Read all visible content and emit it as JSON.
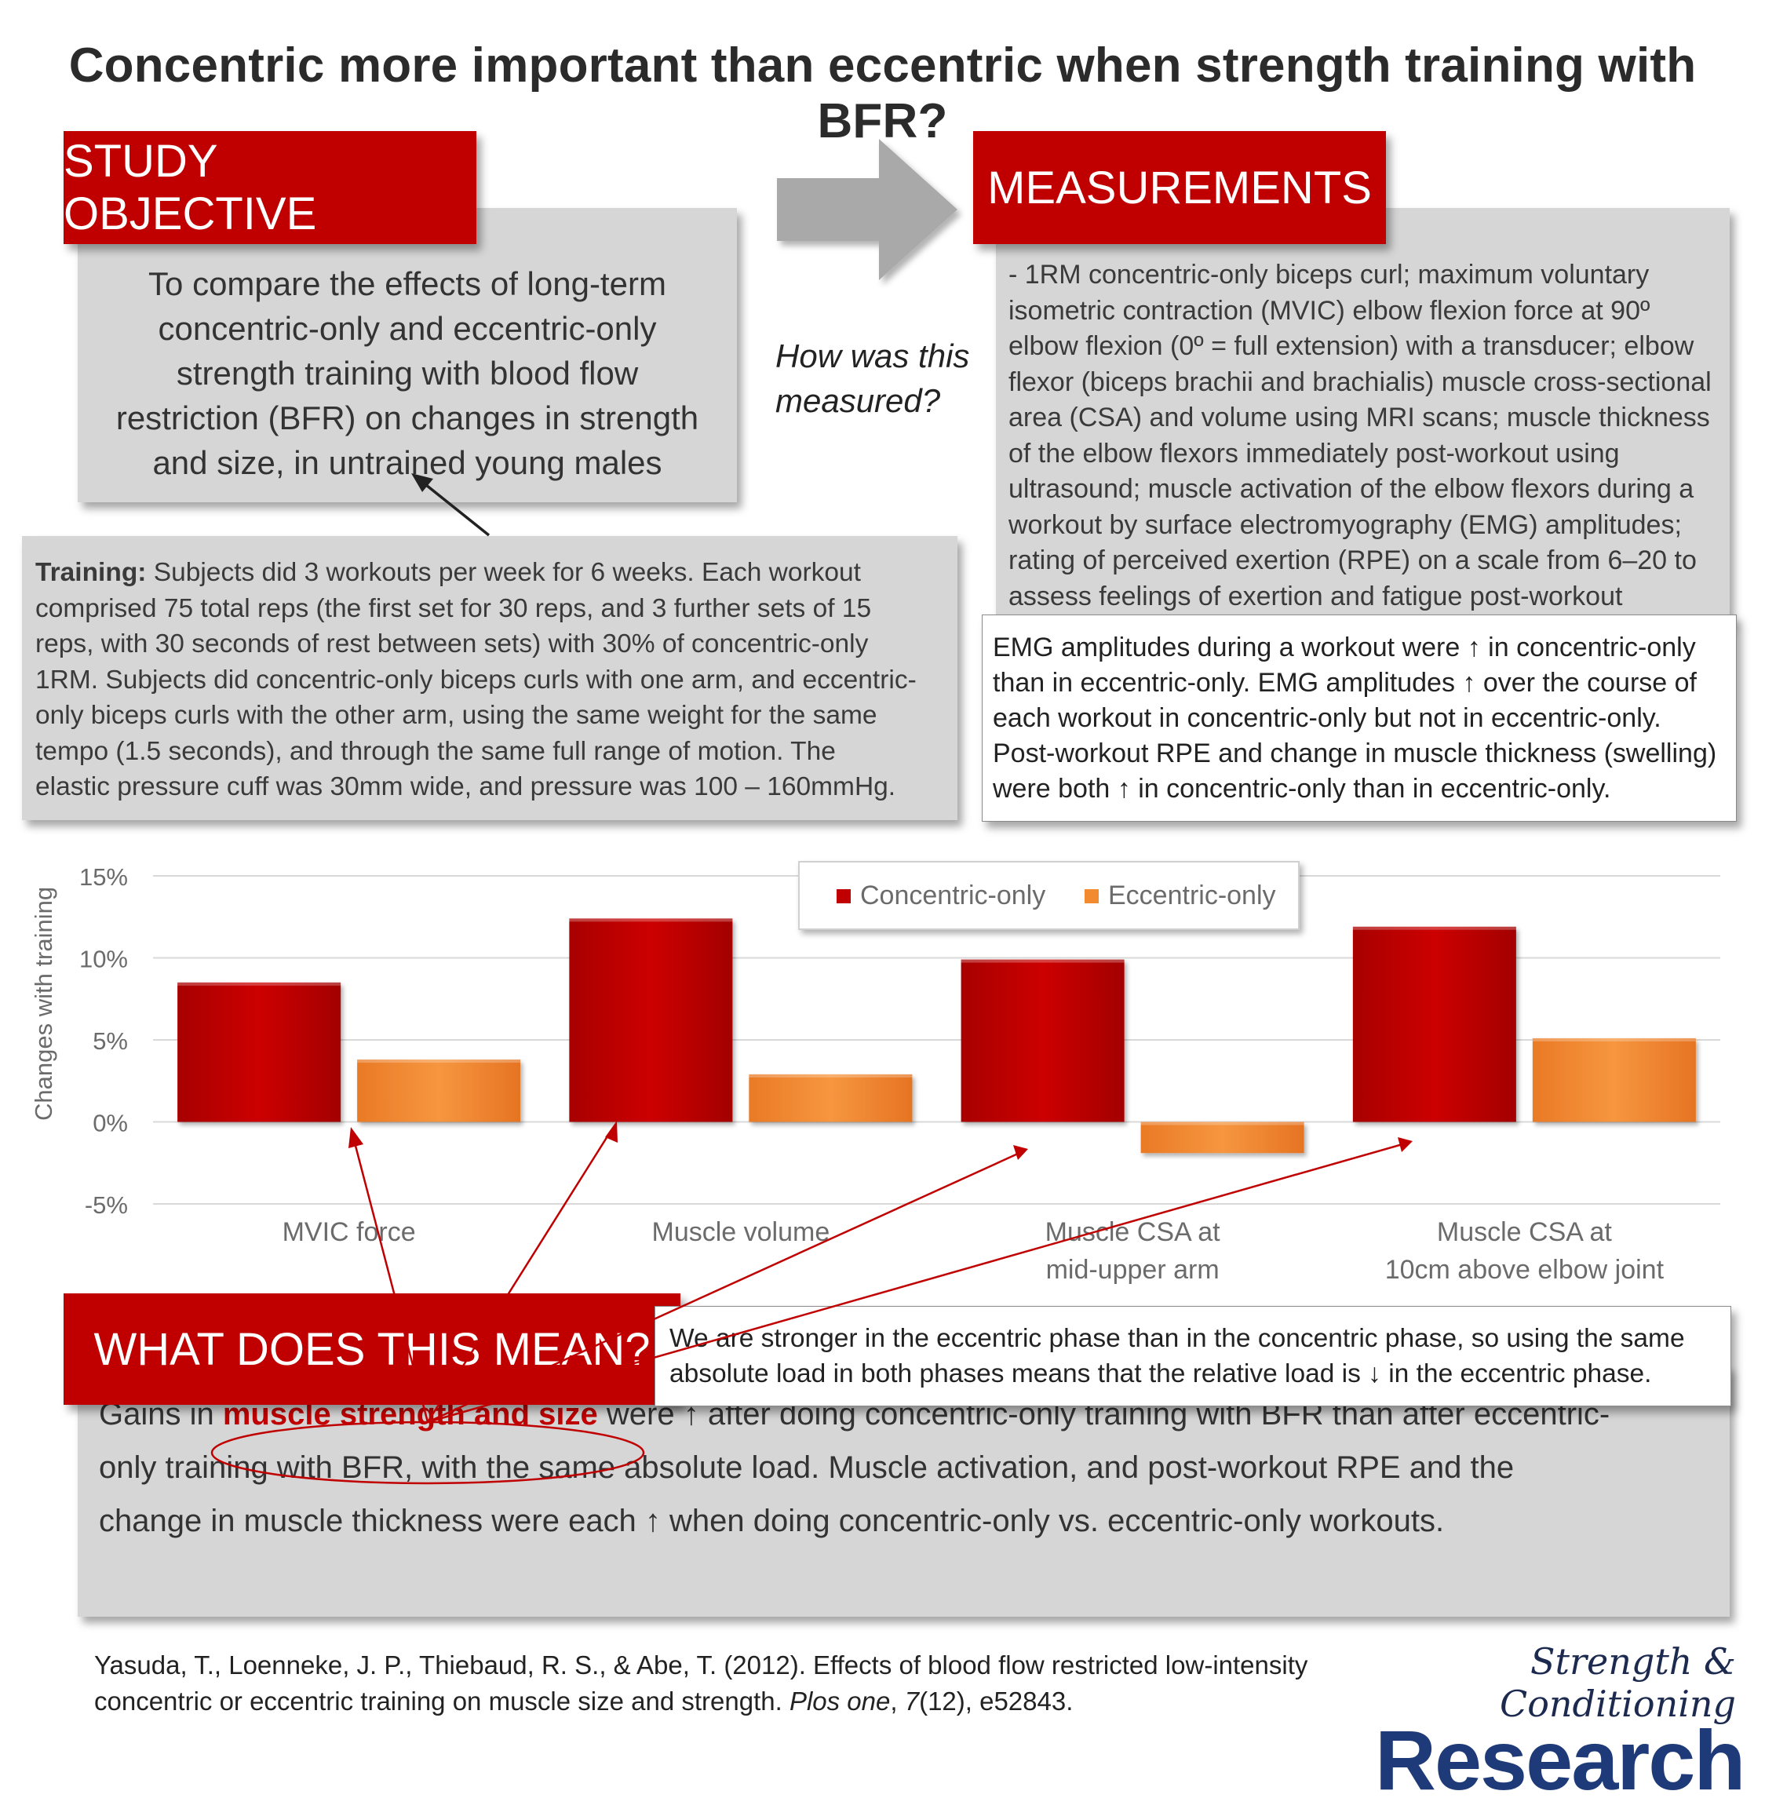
{
  "title": "Concentric more important than eccentric when strength training with BFR?",
  "objective": {
    "label": "STUDY OBJECTIVE",
    "lines": [
      "To compare the effects of long-term",
      "concentric-only and eccentric-only",
      "strength training with blood flow",
      "restriction (BFR) on changes in strength",
      "and size, in untrained young males"
    ]
  },
  "question": [
    "How was this",
    "measured?"
  ],
  "measurements": {
    "label": "MEASUREMENTS",
    "lines": [
      "- 1RM concentric-only biceps curl; maximum voluntary",
      "isometric contraction (MVIC) elbow flexion force at 90º",
      "elbow flexion (0º = full extension) with a transducer; elbow",
      "flexor (biceps brachii and brachialis) muscle cross-sectional",
      "area (CSA) and volume using MRI scans; muscle thickness",
      "of the elbow flexors immediately post-workout using",
      "ultrasound; muscle activation of the elbow flexors during a",
      "workout by surface electromyography (EMG) amplitudes;",
      "rating of perceived exertion (RPE) on a scale from 6–20 to",
      "assess feelings of exertion and fatigue post-workout"
    ]
  },
  "training": {
    "label": "Training:",
    "first_line": " Subjects did 3 workouts per week for 6 weeks. Each workout",
    "lines": [
      "comprised 75 total reps (the first set for 30 reps, and 3 further sets of 15",
      "reps, with 30 seconds of rest between sets) with 30% of concentric-only",
      "1RM. Subjects did concentric-only biceps curls with one arm, and eccentric-",
      "only biceps curls with the other arm, using the same weight for the same",
      "tempo (1.5 seconds), and through the same full range of motion. The",
      "elastic pressure cuff was 30mm wide, and pressure was 100 – 160mmHg."
    ]
  },
  "emg": {
    "lines": [
      "EMG amplitudes during a workout were ↑ in concentric-only",
      "than in eccentric-only. EMG amplitudes ↑ over the course of",
      "each workout in concentric-only but not in eccentric-only.",
      "Post-workout RPE and change in muscle thickness (swelling)",
      "were both ↑ in concentric-only than in eccentric-only."
    ]
  },
  "meaning": {
    "label": "WHAT DOES THIS MEAN?",
    "note_lines": [
      "We are stronger in the eccentric phase than in the concentric phase, so using the same",
      "absolute load in both phases means that the relative load is ↓ in the eccentric phase."
    ],
    "line1_pre": "Gains in ",
    "line1_highlight": "muscle strength and size",
    "line1_post": " were ↑ after doing concentric-only training with BFR than after eccentric-",
    "line2": "only training with BFR, with the same absolute load. Muscle activation, and post-workout RPE and the",
    "line3": "change in muscle thickness were each ↑ when doing concentric-only vs. eccentric-only workouts."
  },
  "citation": {
    "line1": "Yasuda, T., Loenneke, J. P., Thiebaud, R. S., & Abe, T. (2012). Effects of blood flow restricted low-intensity",
    "line2_pre": "concentric or eccentric training on muscle size and strength. ",
    "journal": "Plos one",
    "sep": ", ",
    "volume": "7",
    "issue_pages": "(12), e52843."
  },
  "logo": {
    "top": "Strength & Conditioning",
    "bottom": "Research"
  },
  "chart_data": {
    "type": "bar",
    "categories": [
      [
        "MVIC force"
      ],
      [
        "Muscle volume"
      ],
      [
        "Muscle CSA at",
        "mid-upper arm"
      ],
      [
        "Muscle CSA at",
        "10cm above elbow joint"
      ]
    ],
    "series": [
      {
        "name": "Concentric-only",
        "values": [
          8.5,
          12.4,
          9.9,
          11.9
        ],
        "color": "#c00000"
      },
      {
        "name": "Eccentric-only",
        "values": [
          3.8,
          2.9,
          -1.9,
          5.1
        ],
        "color": "#f28a30"
      }
    ],
    "ylabel": "Changes with training",
    "yticks": [
      "15%",
      "10%",
      "5%",
      "0%",
      "-5%"
    ],
    "ytick_values": [
      15,
      10,
      5,
      0,
      -5
    ],
    "ylim": [
      -5,
      15
    ],
    "grid": true,
    "legend": "top-center"
  }
}
